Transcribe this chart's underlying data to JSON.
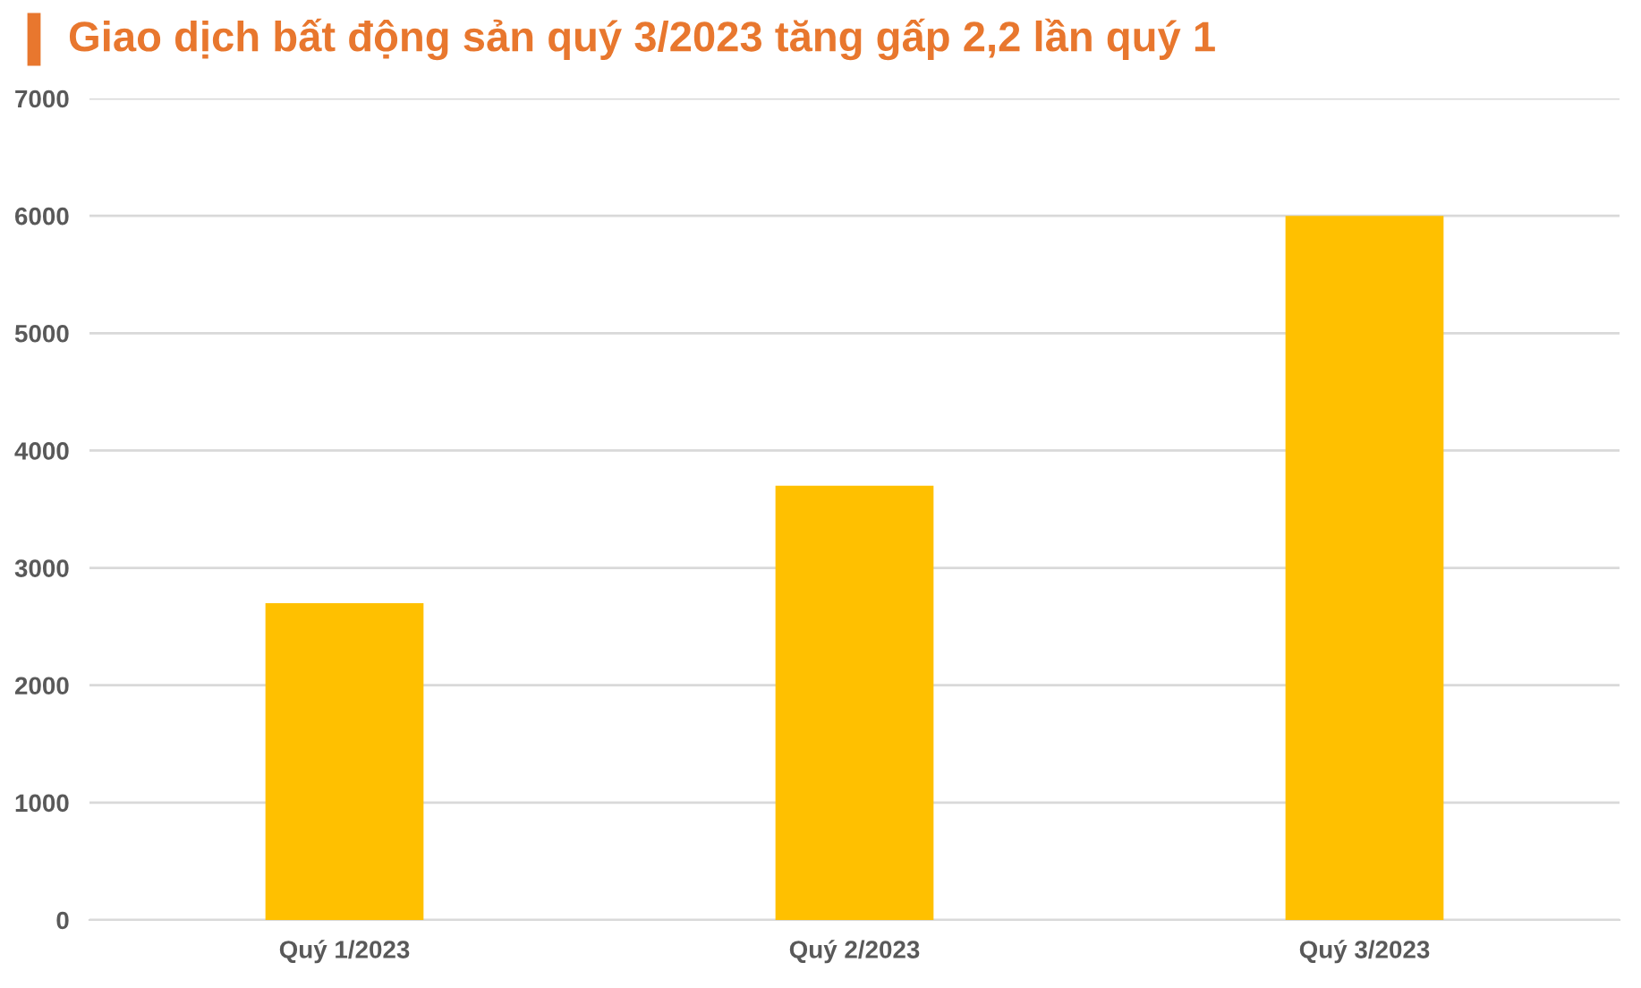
{
  "chart_data": {
    "type": "bar",
    "title": "Giao dịch bất động sản quý 3/2023 tăng gấp 2,2 lần quý 1",
    "categories": [
      "Quý 1/2023",
      "Quý 2/2023",
      "Quý 3/2023"
    ],
    "values": [
      2700,
      3700,
      6000
    ],
    "color": "#ffc000",
    "ylim": [
      0,
      7000
    ],
    "yticks": [
      0,
      1000,
      2000,
      3000,
      4000,
      5000,
      6000,
      7000
    ],
    "grid": "y"
  }
}
